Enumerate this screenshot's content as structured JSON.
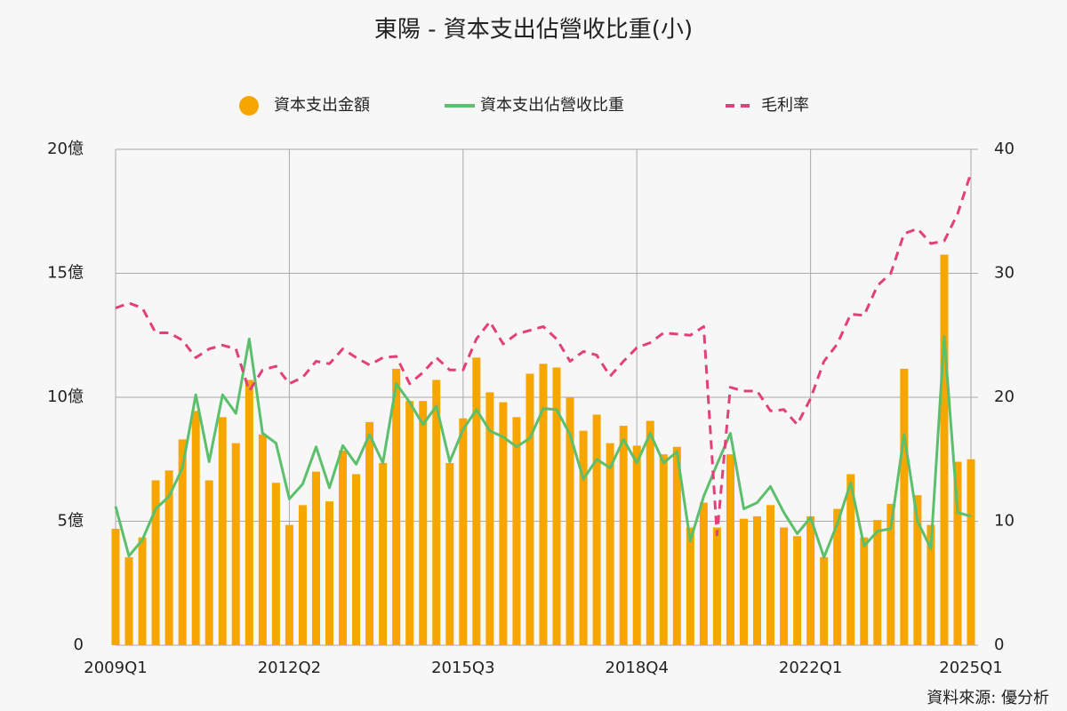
{
  "chart_data": {
    "type": "bar",
    "title": "東陽 - 資本支出佔營收比重(小)",
    "source": "資料來源: 優分析",
    "categories": [
      "2009Q1",
      null,
      null,
      null,
      null,
      null,
      null,
      null,
      null,
      null,
      null,
      null,
      null,
      "2012Q2",
      null,
      null,
      null,
      null,
      null,
      null,
      null,
      null,
      null,
      null,
      null,
      null,
      "2015Q3",
      null,
      null,
      null,
      null,
      null,
      null,
      null,
      null,
      null,
      null,
      null,
      null,
      "2018Q4",
      null,
      null,
      null,
      null,
      null,
      null,
      null,
      null,
      null,
      null,
      null,
      null,
      "2022Q1",
      null,
      null,
      null,
      null,
      null,
      null,
      null,
      null,
      null,
      null,
      null,
      "2025Q1"
    ],
    "ylim": [
      0,
      20
    ],
    "yticks": [
      0,
      {
        "value": 5,
        "label": "5億"
      },
      {
        "value": 10,
        "label": "10億"
      },
      {
        "value": 15,
        "label": "15億"
      },
      {
        "value": 20,
        "label": "20億"
      }
    ],
    "y2lim": [
      0,
      40
    ],
    "y2ticks": [
      0,
      10,
      20,
      30,
      40
    ],
    "grid": true,
    "legend": "top",
    "series": [
      {
        "name": "資本支出金額",
        "type": "bar",
        "color": "#f7a600",
        "values": [
          4.7,
          3.55,
          4.35,
          6.65,
          7.05,
          8.3,
          9.45,
          6.65,
          9.2,
          8.15,
          10.7,
          8.5,
          6.55,
          4.85,
          5.65,
          7.0,
          5.8,
          7.85,
          6.9,
          9.0,
          7.35,
          11.15,
          9.85,
          9.85,
          10.7,
          7.35,
          9.15,
          11.6,
          10.2,
          9.8,
          9.2,
          10.95,
          11.35,
          11.2,
          10.0,
          8.65,
          9.3,
          8.15,
          8.85,
          8.05,
          9.05,
          7.7,
          8.0,
          4.75,
          5.75,
          4.75,
          7.7,
          5.1,
          5.2,
          5.65,
          4.75,
          4.4,
          5.2,
          3.55,
          5.5,
          6.9,
          4.35,
          5.05,
          5.7,
          11.15,
          6.05,
          4.85,
          15.75,
          7.4,
          7.5
        ]
      },
      {
        "name": "資本支出佔營收比重",
        "type": "line",
        "axis": "y2",
        "color": "#5cbf6b",
        "values": [
          11.2,
          7.2,
          8.5,
          11.0,
          12.0,
          14.3,
          20.2,
          14.8,
          20.2,
          18.7,
          24.7,
          17.1,
          16.3,
          11.8,
          13.0,
          16.0,
          12.7,
          16.1,
          14.6,
          17.0,
          14.7,
          21.1,
          19.6,
          17.8,
          19.3,
          14.8,
          17.4,
          19.0,
          17.3,
          16.8,
          16.0,
          16.7,
          19.1,
          19.0,
          17.0,
          13.4,
          15.0,
          14.3,
          16.6,
          14.7,
          17.1,
          14.7,
          15.6,
          8.4,
          12.0,
          14.6,
          17.1,
          11.0,
          11.5,
          12.8,
          10.7,
          9.0,
          10.3,
          7.1,
          9.8,
          13.1,
          8.0,
          9.2,
          9.4,
          17.0,
          10.0,
          7.8,
          24.9,
          10.7,
          10.4
        ]
      },
      {
        "name": "毛利率",
        "type": "dashed",
        "axis": "y2",
        "color": "#e2407a",
        "values": [
          27.2,
          27.6,
          27.2,
          25.2,
          25.2,
          24.6,
          23.2,
          23.9,
          24.2,
          23.9,
          20.5,
          22.2,
          22.5,
          21.1,
          21.6,
          22.9,
          22.7,
          23.9,
          23.2,
          22.6,
          23.2,
          23.3,
          21.1,
          22.0,
          23.2,
          22.2,
          22.2,
          24.7,
          26.1,
          24.3,
          25.1,
          25.4,
          25.7,
          24.7,
          22.9,
          23.7,
          23.4,
          21.7,
          22.9,
          24.0,
          24.4,
          25.2,
          25.1,
          25.0,
          25.7,
          8.9,
          20.8,
          20.5,
          20.5,
          18.9,
          19.0,
          17.8,
          19.9,
          22.9,
          24.3,
          26.7,
          26.6,
          29.0,
          30.0,
          33.2,
          33.6,
          32.4,
          32.6,
          34.8,
          38.1
        ]
      }
    ]
  }
}
